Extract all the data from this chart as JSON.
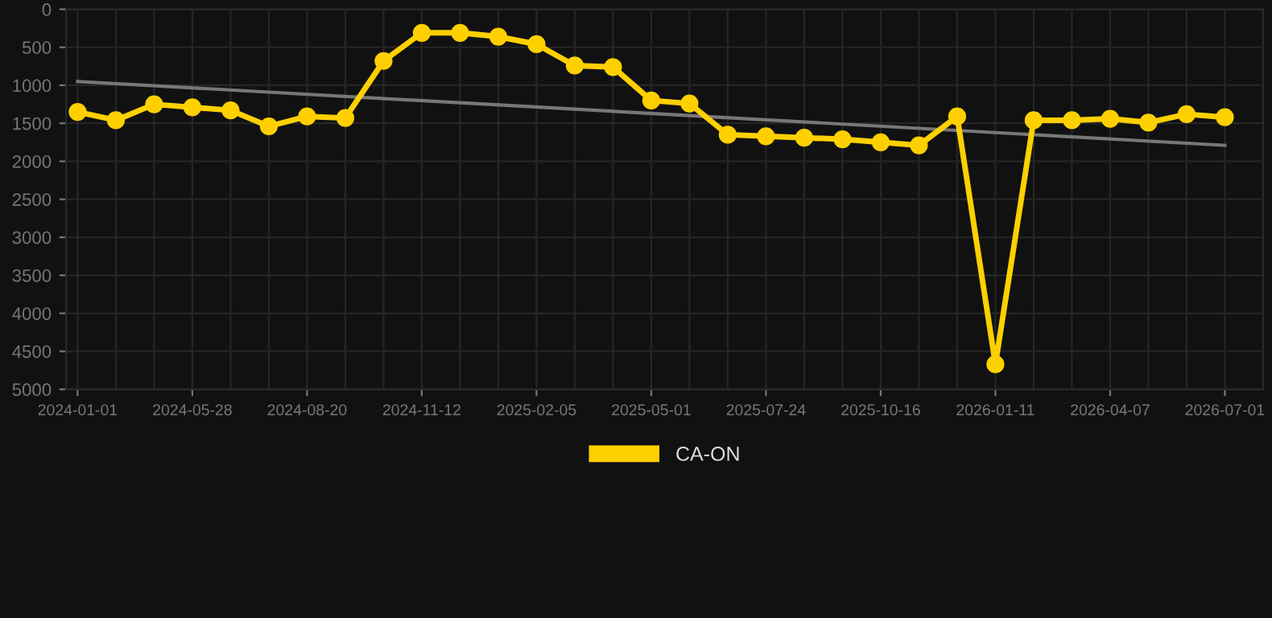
{
  "chart_data": {
    "type": "line",
    "categories": [
      "2024-01-01",
      null,
      null,
      "2024-05-28",
      null,
      null,
      "2024-08-20",
      null,
      null,
      "2024-11-12",
      null,
      null,
      "2025-02-05",
      null,
      null,
      "2025-05-01",
      null,
      null,
      "2025-07-24",
      null,
      null,
      "2025-10-16",
      null,
      null,
      "2026-01-11",
      null,
      null,
      "2026-04-07",
      null,
      null,
      "2026-07-01"
    ],
    "series": [
      {
        "name": "CA-ON",
        "color": "#ffd000",
        "marker": "circle",
        "values": [
          1350,
          1460,
          1250,
          1290,
          1330,
          1540,
          1410,
          1430,
          680,
          310,
          310,
          360,
          460,
          740,
          760,
          1200,
          1240,
          1650,
          1670,
          1690,
          1710,
          1750,
          1790,
          1410,
          4670,
          1460,
          1460,
          1440,
          1490,
          1380,
          1420
        ]
      },
      {
        "color": "#777777",
        "marker": "none",
        "values": [
          950,
          null,
          null,
          null,
          null,
          null,
          null,
          null,
          null,
          null,
          null,
          null,
          null,
          null,
          null,
          null,
          null,
          null,
          null,
          null,
          null,
          null,
          null,
          null,
          null,
          null,
          null,
          null,
          null,
          null,
          1790
        ]
      }
    ],
    "ylim": [
      5000,
      0
    ],
    "yticks": [
      0,
      500,
      1000,
      1500,
      2000,
      2500,
      3000,
      3500,
      4000,
      4500,
      5000
    ],
    "grid": true,
    "legend": "bottom"
  }
}
